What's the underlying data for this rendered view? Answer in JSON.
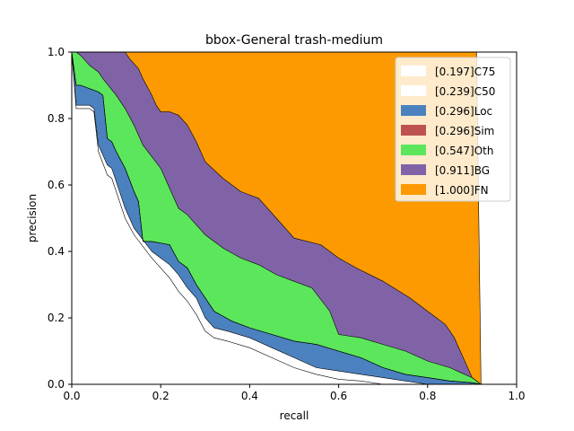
{
  "chart_data": {
    "type": "area",
    "title": "bbox-General trash-medium",
    "xlabel": "recall",
    "ylabel": "precision",
    "xlim": [
      0,
      1
    ],
    "ylim": [
      0,
      1
    ],
    "xticks": [
      "0.0",
      "0.2",
      "0.4",
      "0.6",
      "0.8",
      "1.0"
    ],
    "yticks": [
      "0.0",
      "0.2",
      "0.4",
      "0.6",
      "0.8",
      "1.0"
    ],
    "grid": false,
    "legend_position": "upper-right",
    "series": [
      {
        "name": "[0.197]C75",
        "color": "#ffffff",
        "x": [
          0.0,
          0.01,
          0.04,
          0.05,
          0.06,
          0.08,
          0.09,
          0.1,
          0.12,
          0.14,
          0.18,
          0.22,
          0.24,
          0.26,
          0.28,
          0.3,
          0.32,
          0.35,
          0.4,
          0.45,
          0.5,
          0.55,
          0.6,
          0.65,
          0.7
        ],
        "y": [
          1.0,
          0.83,
          0.83,
          0.82,
          0.7,
          0.63,
          0.62,
          0.58,
          0.5,
          0.45,
          0.38,
          0.32,
          0.28,
          0.25,
          0.21,
          0.16,
          0.14,
          0.13,
          0.11,
          0.08,
          0.05,
          0.03,
          0.015,
          0.01,
          0.0
        ]
      },
      {
        "name": "[0.239]C50",
        "color": "#ffffff",
        "x": [
          0.0,
          0.01,
          0.04,
          0.05,
          0.06,
          0.08,
          0.09,
          0.1,
          0.12,
          0.14,
          0.18,
          0.22,
          0.24,
          0.26,
          0.28,
          0.3,
          0.32,
          0.35,
          0.4,
          0.45,
          0.5,
          0.55,
          0.6,
          0.65,
          0.7,
          0.75,
          0.8
        ],
        "y": [
          1.0,
          0.84,
          0.84,
          0.83,
          0.72,
          0.66,
          0.65,
          0.61,
          0.53,
          0.47,
          0.4,
          0.36,
          0.33,
          0.29,
          0.26,
          0.2,
          0.17,
          0.16,
          0.14,
          0.11,
          0.08,
          0.05,
          0.04,
          0.03,
          0.02,
          0.01,
          0.0
        ]
      },
      {
        "name": "[0.296]Loc",
        "color": "#4c81bf",
        "x": [
          0.0,
          0.01,
          0.02,
          0.06,
          0.07,
          0.08,
          0.09,
          0.1,
          0.12,
          0.14,
          0.15,
          0.16,
          0.18,
          0.22,
          0.24,
          0.26,
          0.28,
          0.3,
          0.32,
          0.36,
          0.4,
          0.45,
          0.5,
          0.55,
          0.6,
          0.65,
          0.7,
          0.75,
          0.8,
          0.85,
          0.9,
          0.92
        ],
        "y": [
          1.0,
          0.9,
          0.9,
          0.88,
          0.87,
          0.74,
          0.73,
          0.7,
          0.65,
          0.58,
          0.55,
          0.43,
          0.43,
          0.42,
          0.37,
          0.35,
          0.3,
          0.26,
          0.22,
          0.19,
          0.17,
          0.15,
          0.13,
          0.12,
          0.1,
          0.08,
          0.05,
          0.03,
          0.02,
          0.01,
          0.005,
          0.0
        ]
      },
      {
        "name": "[0.296]Sim",
        "color": "#bd5250",
        "x": [
          0.0,
          0.01,
          0.02,
          0.06,
          0.07,
          0.08,
          0.09,
          0.1,
          0.12,
          0.14,
          0.15,
          0.16,
          0.18,
          0.22,
          0.24,
          0.26,
          0.28,
          0.3,
          0.32,
          0.36,
          0.4,
          0.45,
          0.5,
          0.55,
          0.6,
          0.65,
          0.7,
          0.75,
          0.8,
          0.85,
          0.9,
          0.92
        ],
        "y": [
          1.0,
          0.9,
          0.9,
          0.88,
          0.87,
          0.74,
          0.73,
          0.7,
          0.65,
          0.58,
          0.55,
          0.43,
          0.43,
          0.42,
          0.37,
          0.35,
          0.3,
          0.26,
          0.22,
          0.19,
          0.17,
          0.15,
          0.13,
          0.12,
          0.1,
          0.08,
          0.05,
          0.03,
          0.02,
          0.01,
          0.005,
          0.0
        ]
      },
      {
        "name": "[0.547]Oth",
        "color": "#5ce65c",
        "x": [
          0.0,
          0.01,
          0.02,
          0.04,
          0.06,
          0.07,
          0.1,
          0.12,
          0.14,
          0.16,
          0.2,
          0.24,
          0.26,
          0.28,
          0.3,
          0.34,
          0.38,
          0.42,
          0.46,
          0.5,
          0.54,
          0.58,
          0.6,
          0.65,
          0.7,
          0.75,
          0.8,
          0.85,
          0.9,
          0.92
        ],
        "y": [
          1.0,
          1.0,
          0.99,
          0.96,
          0.94,
          0.92,
          0.87,
          0.83,
          0.78,
          0.72,
          0.65,
          0.53,
          0.51,
          0.48,
          0.45,
          0.41,
          0.38,
          0.36,
          0.33,
          0.31,
          0.29,
          0.22,
          0.15,
          0.14,
          0.12,
          0.1,
          0.07,
          0.05,
          0.02,
          0.0
        ]
      },
      {
        "name": "[0.911]BG",
        "color": "#8063a6",
        "x": [
          0.0,
          0.01,
          0.12,
          0.13,
          0.15,
          0.16,
          0.18,
          0.19,
          0.2,
          0.22,
          0.24,
          0.26,
          0.28,
          0.3,
          0.34,
          0.38,
          0.4,
          0.42,
          0.46,
          0.5,
          0.56,
          0.6,
          0.64,
          0.7,
          0.76,
          0.8,
          0.84,
          0.86,
          0.88,
          0.9,
          0.92
        ],
        "y": [
          1.0,
          1.0,
          1.0,
          0.98,
          0.95,
          0.92,
          0.87,
          0.84,
          0.82,
          0.82,
          0.81,
          0.78,
          0.73,
          0.67,
          0.62,
          0.58,
          0.57,
          0.56,
          0.5,
          0.44,
          0.42,
          0.38,
          0.35,
          0.31,
          0.26,
          0.22,
          0.18,
          0.14,
          0.08,
          0.02,
          0.0
        ]
      },
      {
        "name": "[1.000]FN",
        "color": "#fd9a01",
        "x": [
          0.0,
          0.91,
          0.92,
          1.0
        ],
        "y": [
          1.0,
          1.0,
          0.0,
          0.0
        ]
      }
    ]
  }
}
